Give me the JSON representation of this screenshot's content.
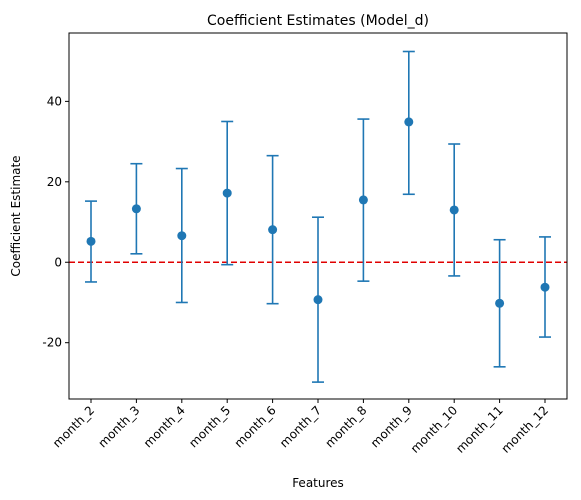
{
  "chart_data": {
    "type": "scatter",
    "title": "Coefficient Estimates (Model_d)",
    "xlabel": "Features",
    "ylabel": "Coefficient Estimate",
    "ylim": [
      -34,
      57
    ],
    "yticks": [
      -20,
      0,
      20,
      40
    ],
    "categories": [
      "month_2",
      "month_3",
      "month_4",
      "month_5",
      "month_6",
      "month_7",
      "month_8",
      "month_9",
      "month_10",
      "month_11",
      "month_12"
    ],
    "values": [
      5.2,
      13.3,
      6.6,
      17.2,
      8.1,
      -9.3,
      15.5,
      34.9,
      13.0,
      -10.2,
      -6.2
    ],
    "lower": [
      -4.9,
      2.1,
      -10.0,
      -0.6,
      -10.3,
      -29.8,
      -4.7,
      16.9,
      -3.4,
      -26.0,
      -18.6
    ],
    "upper": [
      15.2,
      24.5,
      23.3,
      35.0,
      26.5,
      11.2,
      35.6,
      52.4,
      29.4,
      5.6,
      6.3
    ],
    "reference_line": {
      "y": 0,
      "style": "dashed",
      "color": "#e00000"
    },
    "marker_color": "#1f77b4",
    "grid": false,
    "legend": "none"
  }
}
